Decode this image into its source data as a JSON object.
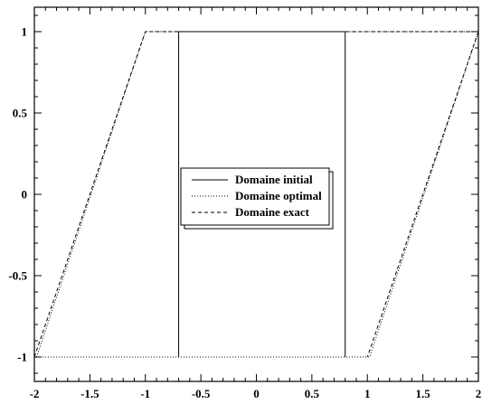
{
  "chart_data": {
    "type": "line",
    "title": "",
    "xlabel": "",
    "ylabel": "",
    "xlim": [
      -2,
      2
    ],
    "ylim": [
      -1.15,
      1.15
    ],
    "grid": false,
    "legend_position": "center",
    "x_ticks": [
      -2,
      -1.5,
      -1,
      -0.5,
      0,
      0.5,
      1,
      1.5,
      2
    ],
    "x_tick_labels": [
      "-2",
      "-1.5",
      "-1",
      "-0.5",
      "0",
      "0.5",
      "1",
      "1.5",
      "2"
    ],
    "y_ticks": [
      -1,
      -0.5,
      0,
      0.5,
      1
    ],
    "y_tick_labels": [
      "-1",
      "-0.5",
      "0",
      "0.5",
      "1"
    ],
    "series": [
      {
        "name": "Domaine initial",
        "style": "solid",
        "color": "#000000",
        "points": [
          [
            -0.7,
            -1
          ],
          [
            -0.7,
            1
          ],
          [
            0.8,
            1
          ],
          [
            0.8,
            -1
          ]
        ]
      },
      {
        "name": "Domaine optimal",
        "style": "dotted",
        "color": "#000000",
        "points": [
          [
            -1.98,
            -1
          ],
          [
            -1.0,
            1
          ],
          [
            2.0,
            1
          ],
          [
            1.02,
            -1
          ],
          [
            -1.98,
            -1
          ]
        ]
      },
      {
        "name": "Domaine exact",
        "style": "dashed",
        "color": "#000000",
        "points": [
          [
            -2.0,
            -1
          ],
          [
            -1.0,
            1
          ],
          [
            2.0,
            1
          ],
          [
            1.0,
            -1
          ]
        ]
      }
    ]
  }
}
